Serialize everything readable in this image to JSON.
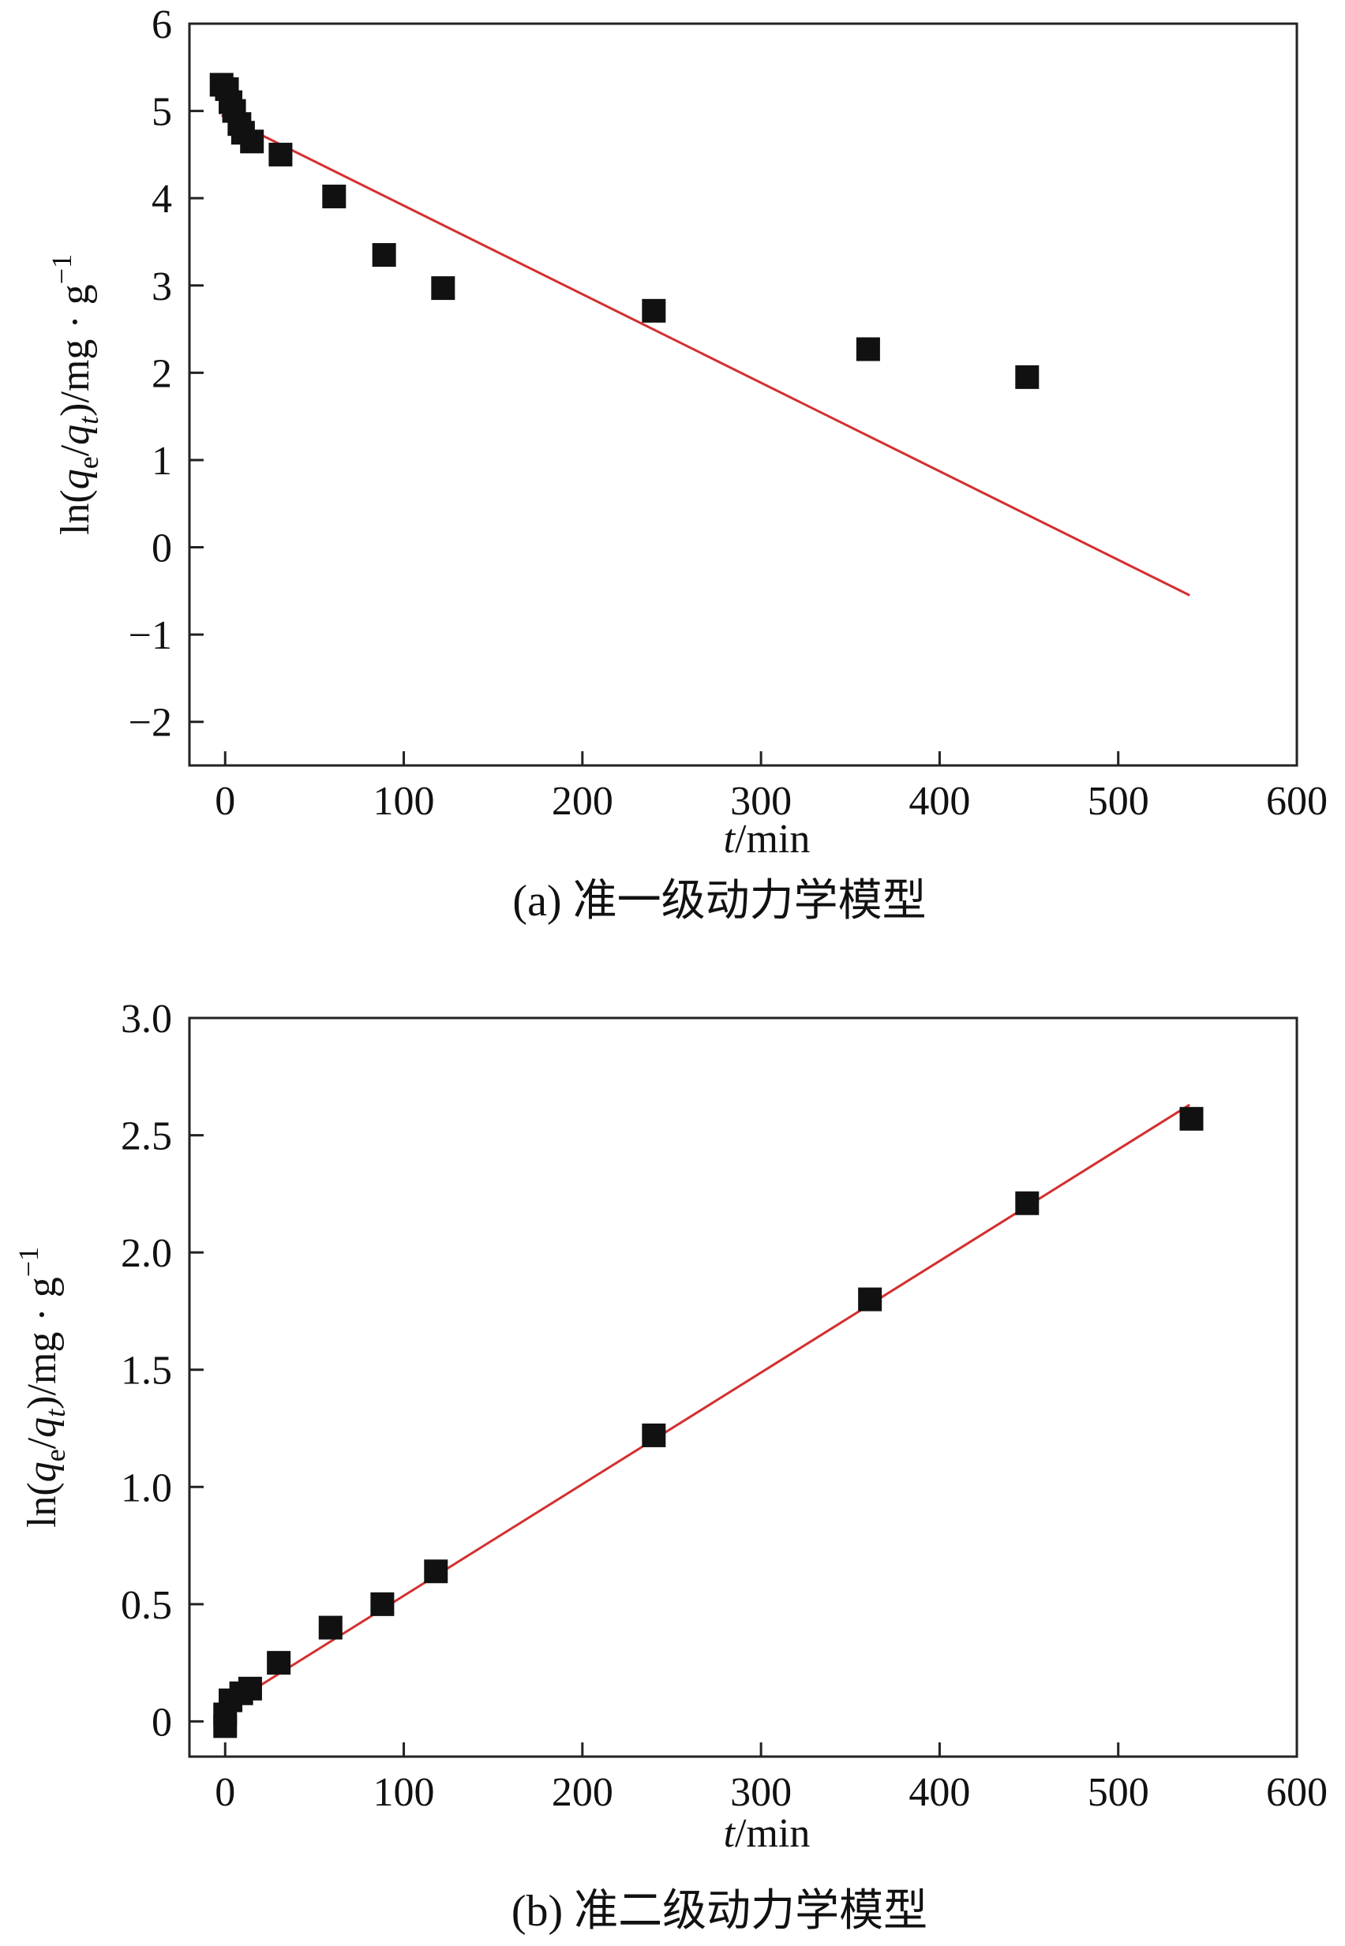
{
  "chart_data": [
    {
      "type": "scatter",
      "caption": "(a) 准一级动力学模型",
      "ylabel": "ln(qe/qt)/mg · g−1",
      "xlabel": "t/min",
      "xlim": [
        -20,
        600
      ],
      "ylim": [
        -2.5,
        6
      ],
      "xticks": [
        0,
        100,
        200,
        300,
        400,
        500,
        600
      ],
      "yticks": [
        -2,
        -1,
        0,
        1,
        2,
        3,
        4,
        5,
        6
      ],
      "yticklabels": [
        "−2",
        "−1",
        "0",
        "1",
        "2",
        "3",
        "4",
        "5",
        "6"
      ],
      "marker_color": "#111111",
      "line_color": "#d42f2f",
      "points": [
        {
          "x": -2,
          "y": 5.3
        },
        {
          "x": 1,
          "y": 5.25
        },
        {
          "x": 3,
          "y": 5.1
        },
        {
          "x": 5,
          "y": 5.0
        },
        {
          "x": 8,
          "y": 4.85
        },
        {
          "x": 10,
          "y": 4.75
        },
        {
          "x": 15,
          "y": 4.65
        },
        {
          "x": 31,
          "y": 4.5
        },
        {
          "x": 61,
          "y": 4.02
        },
        {
          "x": 89,
          "y": 3.35
        },
        {
          "x": 122,
          "y": 2.97
        },
        {
          "x": 240,
          "y": 2.71
        },
        {
          "x": 360,
          "y": 2.27
        },
        {
          "x": 449,
          "y": 1.95
        }
      ],
      "fit_line": {
        "x": [
          -2,
          540
        ],
        "y": [
          4.95,
          -0.55
        ]
      }
    },
    {
      "type": "scatter",
      "caption": "(b) 准二级动力学模型",
      "ylabel": "ln(qe/qt)/mg · g−1",
      "xlabel": "t/min",
      "xlim": [
        -20,
        600
      ],
      "ylim": [
        -0.15,
        3.0
      ],
      "xticks": [
        0,
        100,
        200,
        300,
        400,
        500,
        600
      ],
      "yticks": [
        0,
        0.5,
        1.0,
        1.5,
        2.0,
        2.5,
        3.0
      ],
      "yticklabels": [
        "0",
        "0.5",
        "1.0",
        "1.5",
        "2.0",
        "2.5",
        "3.0"
      ],
      "marker_color": "#111111",
      "line_color": "#d42f2f",
      "points": [
        {
          "x": 0,
          "y": -0.02
        },
        {
          "x": 0,
          "y": 0.03
        },
        {
          "x": 3,
          "y": 0.09
        },
        {
          "x": 9,
          "y": 0.12
        },
        {
          "x": 14,
          "y": 0.14
        },
        {
          "x": 30,
          "y": 0.25
        },
        {
          "x": 59,
          "y": 0.4
        },
        {
          "x": 88,
          "y": 0.5
        },
        {
          "x": 118,
          "y": 0.64
        },
        {
          "x": 240,
          "y": 1.22
        },
        {
          "x": 361,
          "y": 1.8
        },
        {
          "x": 449,
          "y": 2.21
        },
        {
          "x": 541,
          "y": 2.57
        }
      ],
      "fit_line": {
        "x": [
          0,
          540
        ],
        "y": [
          0.06,
          2.63
        ]
      }
    }
  ]
}
